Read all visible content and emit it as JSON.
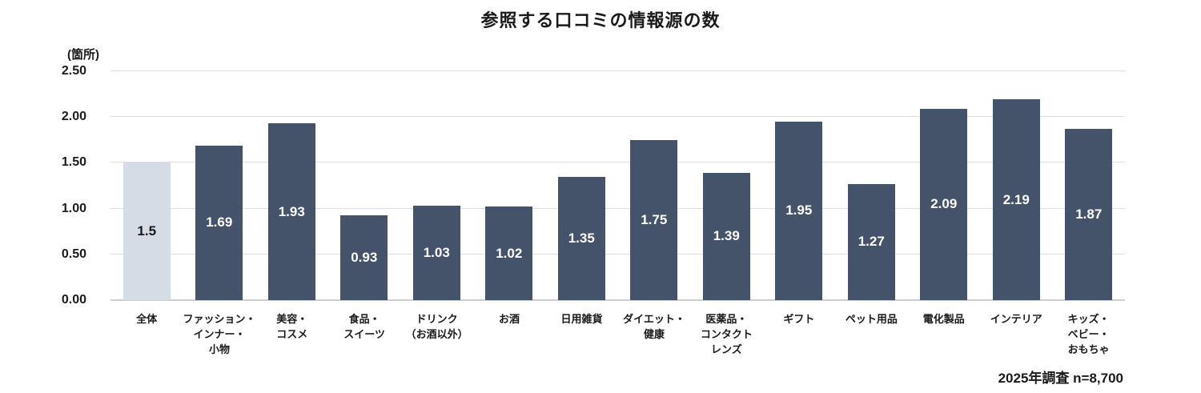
{
  "title": "参照する口コミの情報源の数",
  "footer_note": "2025年調査 n=8,700",
  "chart_data": {
    "type": "bar",
    "title": "参照する口コミの情報源の数",
    "unit_label": "(箇所)",
    "xlabel": "",
    "ylabel": "箇所",
    "ylim": [
      0,
      2.5
    ],
    "ytick_step": 0.5,
    "yticks_top_to_bottom": [
      "2.50",
      "2.00",
      "1.50",
      "1.00",
      "0.50",
      "0.00"
    ],
    "grid": true,
    "legend": "none",
    "categories": [
      [
        "全体"
      ],
      [
        "ファッション・",
        "インナー・",
        "小物"
      ],
      [
        "美容・",
        "コスメ"
      ],
      [
        "食品・",
        "スイーツ"
      ],
      [
        "ドリンク",
        "（お酒以外）"
      ],
      [
        "お酒"
      ],
      [
        "日用雑貨"
      ],
      [
        "ダイエット・",
        "健康"
      ],
      [
        "医薬品・",
        "コンタクト",
        "レンズ"
      ],
      [
        "ギフト"
      ],
      [
        "ペット用品"
      ],
      [
        "電化製品"
      ],
      [
        "インテリア"
      ],
      [
        "キッズ・",
        "ベビー・",
        "おもちゃ"
      ]
    ],
    "values": [
      1.5,
      1.69,
      1.93,
      0.93,
      1.03,
      1.02,
      1.35,
      1.75,
      1.39,
      1.95,
      1.27,
      2.09,
      2.19,
      1.87
    ],
    "value_labels": [
      "1.5",
      "1.69",
      "1.93",
      "0.93",
      "1.03",
      "1.02",
      "1.35",
      "1.75",
      "1.39",
      "1.95",
      "1.27",
      "2.09",
      "2.19",
      "1.87"
    ],
    "highlight_index": 0,
    "annotation": "2025年調査 n=8,700",
    "colors": {
      "bar": "#44526A",
      "highlight_bar": "#D6DCE6",
      "value_label_on_bar": "#FFFFFF",
      "value_label_on_highlight": "#1A1A1A",
      "gridline": "#DDDDE0",
      "baseline": "#CFCFD2",
      "text": "#1A1A1A"
    }
  }
}
